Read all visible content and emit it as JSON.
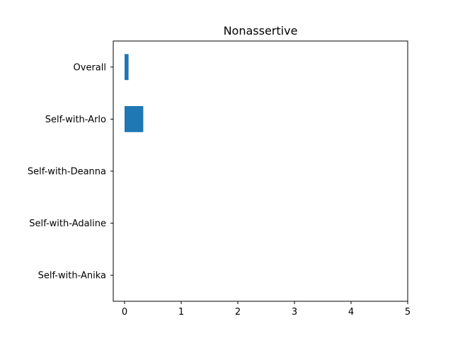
{
  "chart_data": {
    "type": "bar",
    "orientation": "horizontal",
    "title": "Nonassertive",
    "xlabel": "",
    "ylabel": "",
    "categories": [
      "Overall",
      "Self-with-Arlo",
      "Self-with-Deanna",
      "Self-with-Adaline",
      "Self-with-Anika"
    ],
    "values": [
      0.07,
      0.33,
      0,
      0,
      0
    ],
    "xlim": [
      -0.2,
      5
    ],
    "xticks": [
      "0",
      "1",
      "2",
      "3",
      "4",
      "5"
    ],
    "grid": false,
    "bar_color": "#1f77b4"
  }
}
